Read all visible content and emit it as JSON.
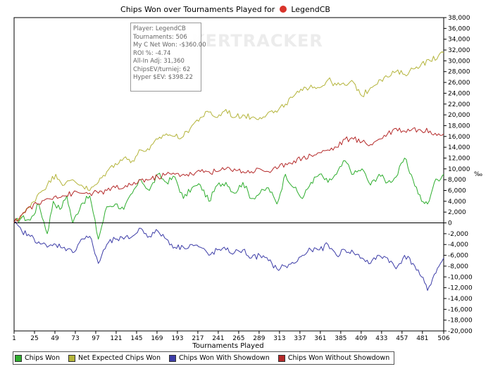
{
  "chart_data": {
    "type": "line",
    "title": "Chips Won over Tournaments Played for",
    "title_player": "LegendCB",
    "xlabel": "Tournaments Played",
    "ylabel": "",
    "y_unit": "‰",
    "xlim": [
      1,
      506
    ],
    "ylim": [
      -20000,
      38000
    ],
    "x_ticks": [
      1,
      25,
      49,
      73,
      97,
      121,
      145,
      169,
      193,
      217,
      241,
      265,
      289,
      313,
      337,
      361,
      385,
      409,
      433,
      457,
      481,
      506
    ],
    "y_ticks": [
      -20000,
      -18000,
      -16000,
      -14000,
      -12000,
      -10000,
      -8000,
      -6000,
      -4000,
      -2000,
      0,
      2000,
      4000,
      6000,
      8000,
      10000,
      12000,
      14000,
      16000,
      18000,
      20000,
      22000,
      24000,
      26000,
      28000,
      30000,
      32000,
      34000,
      36000,
      38000
    ],
    "y_tick_labels": [
      "-20,000",
      "-18,000",
      "-16,000",
      "-14,000",
      "-12,000",
      "-10,000",
      "-8,000",
      "-6,000",
      "-4,000",
      "-2,000",
      "0",
      "2,000",
      "4,000",
      "6,000",
      "8,000",
      "10,000",
      "12,000",
      "14,000",
      "16,000",
      "18,000",
      "20,000",
      "22,000",
      "24,000",
      "26,000",
      "28,000",
      "30,000",
      "32,000",
      "34,000",
      "36,000",
      "38,000"
    ],
    "series": [
      {
        "name": "Chips Won",
        "color": "#2fae2f",
        "x": [
          1,
          10,
          20,
          30,
          40,
          47,
          55,
          63,
          70,
          80,
          90,
          100,
          110,
          120,
          130,
          140,
          150,
          160,
          170,
          180,
          190,
          200,
          210,
          220,
          230,
          240,
          250,
          260,
          270,
          280,
          290,
          300,
          310,
          320,
          330,
          340,
          350,
          360,
          370,
          380,
          390,
          400,
          410,
          420,
          430,
          440,
          450,
          460,
          470,
          480,
          487,
          495,
          506
        ],
        "values": [
          0,
          1000,
          500,
          3500,
          -2000,
          4000,
          2500,
          5000,
          0,
          3500,
          5000,
          -3000,
          3000,
          3500,
          2500,
          5500,
          8000,
          6000,
          9000,
          7500,
          8500,
          4500,
          6500,
          7000,
          4000,
          7000,
          7500,
          5500,
          7500,
          4500,
          5500,
          6500,
          3500,
          9000,
          6500,
          4500,
          7500,
          9000,
          7500,
          9000,
          11500,
          9000,
          10000,
          7000,
          9000,
          7500,
          8500,
          12000,
          8000,
          4000,
          3500,
          7500,
          9000
        ]
      },
      {
        "name": "Net Expected Chips Won",
        "color": "#b4b43a",
        "x": [
          1,
          10,
          20,
          30,
          40,
          50,
          60,
          70,
          80,
          90,
          100,
          110,
          120,
          130,
          140,
          150,
          160,
          170,
          180,
          190,
          200,
          210,
          220,
          230,
          240,
          250,
          260,
          270,
          280,
          290,
          300,
          310,
          320,
          330,
          340,
          350,
          360,
          370,
          380,
          390,
          400,
          410,
          420,
          430,
          440,
          450,
          460,
          470,
          480,
          490,
          500,
          506
        ],
        "values": [
          0,
          1500,
          3000,
          5500,
          7000,
          9000,
          7000,
          8000,
          7000,
          6000,
          7500,
          9500,
          11000,
          12000,
          11500,
          13500,
          13500,
          15500,
          16500,
          16000,
          16000,
          18000,
          19500,
          20500,
          19500,
          21000,
          19500,
          20000,
          19500,
          19500,
          20500,
          20500,
          22000,
          23500,
          24500,
          25500,
          25000,
          26500,
          25500,
          25500,
          26000,
          23500,
          25000,
          26500,
          27000,
          28000,
          27500,
          28500,
          29500,
          30000,
          31000,
          31500
        ]
      },
      {
        "name": "Chips Won With Showdown",
        "color": "#3d3da8",
        "x": [
          1,
          10,
          20,
          30,
          40,
          50,
          60,
          70,
          80,
          90,
          100,
          110,
          120,
          130,
          140,
          150,
          160,
          170,
          180,
          190,
          200,
          210,
          220,
          230,
          240,
          250,
          260,
          270,
          280,
          290,
          300,
          310,
          320,
          330,
          340,
          350,
          360,
          370,
          380,
          390,
          400,
          410,
          420,
          430,
          440,
          450,
          460,
          470,
          480,
          487,
          495,
          506
        ],
        "values": [
          0,
          -1500,
          -2500,
          -3500,
          -4500,
          -4000,
          -4500,
          -5500,
          -3000,
          -2500,
          -7500,
          -4000,
          -3000,
          -3000,
          -2500,
          -1000,
          -2500,
          -1500,
          -3000,
          -4500,
          -4500,
          -4000,
          -4500,
          -6000,
          -5000,
          -5000,
          -5500,
          -5000,
          -6500,
          -6000,
          -7000,
          -8500,
          -8000,
          -7500,
          -6000,
          -5000,
          -5000,
          -4000,
          -6000,
          -5000,
          -5500,
          -6500,
          -7500,
          -6000,
          -6500,
          -8500,
          -6000,
          -7500,
          -10000,
          -12500,
          -9500,
          -6500
        ]
      },
      {
        "name": "Chips Won Without Showdown",
        "color": "#b52a2a",
        "x": [
          1,
          10,
          20,
          30,
          40,
          50,
          60,
          70,
          80,
          90,
          100,
          110,
          120,
          130,
          140,
          150,
          160,
          170,
          180,
          190,
          200,
          210,
          220,
          230,
          240,
          250,
          260,
          270,
          280,
          290,
          300,
          310,
          320,
          330,
          340,
          350,
          360,
          370,
          380,
          390,
          400,
          410,
          420,
          430,
          440,
          450,
          460,
          470,
          480,
          490,
          500,
          506
        ],
        "values": [
          0,
          1500,
          3000,
          3500,
          4500,
          5000,
          5000,
          5500,
          5500,
          5500,
          5500,
          6000,
          6500,
          6500,
          7000,
          8000,
          8000,
          8500,
          9000,
          9000,
          9000,
          9000,
          9500,
          9500,
          9500,
          10000,
          10000,
          9500,
          9500,
          10000,
          9500,
          10000,
          11000,
          11500,
          12000,
          12500,
          13000,
          13500,
          14000,
          15500,
          15500,
          15000,
          14500,
          15500,
          16500,
          17500,
          17000,
          17500,
          17000,
          17000,
          16500,
          16500
        ]
      }
    ]
  },
  "tooltip": {
    "lines": [
      "Player: LegendCB",
      "Tournaments: 506",
      "My C Net Won: -$360.00",
      "ROI %: -4.74",
      "All-In Adj: 31,360",
      "ChipsEV/turniej: 62",
      "Hyper $EV: $398.22"
    ]
  },
  "watermark": "KERTRACKER",
  "legend": [
    {
      "label": "Chips Won",
      "color": "#2fae2f"
    },
    {
      "label": "Net Expected Chips Won",
      "color": "#b4b43a"
    },
    {
      "label": "Chips Won With Showdown",
      "color": "#3d3da8"
    },
    {
      "label": "Chips Won Without Showdown",
      "color": "#b52a2a"
    }
  ]
}
